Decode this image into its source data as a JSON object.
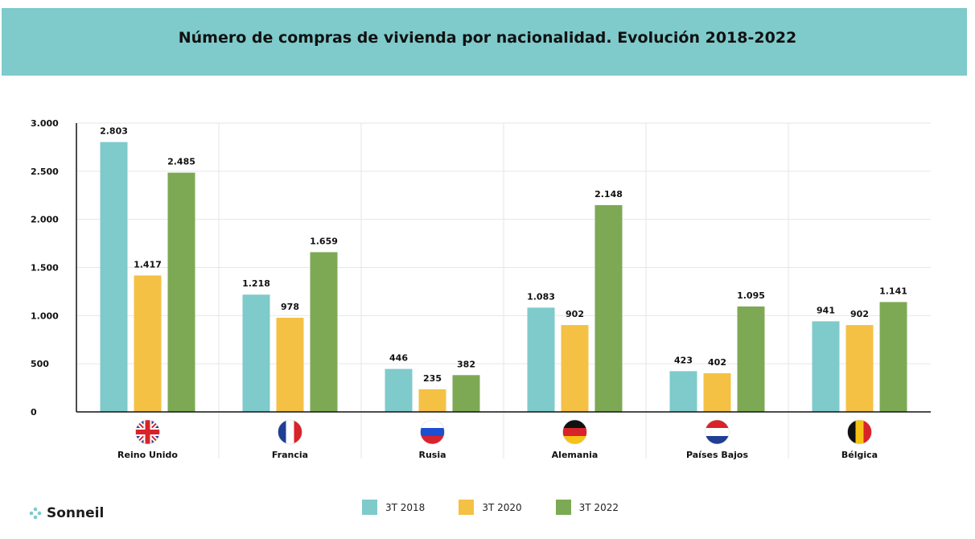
{
  "title": "Número de compras de vivienda por nacionalidad. Evolución 2018-2022",
  "brand": "Sonneil",
  "colors": {
    "banner": "#7fcacb",
    "s2018": "#7fcacb",
    "s2020": "#f4c145",
    "s2022": "#7da955"
  },
  "chart_data": {
    "type": "bar",
    "title": "Número de compras de vivienda por nacionalidad. Evolución 2018-2022",
    "xlabel": "",
    "ylabel": "",
    "ylim": [
      0,
      3000
    ],
    "yticks": [
      0,
      500,
      1000,
      1500,
      2000,
      2500,
      3000
    ],
    "ytick_labels": [
      "0",
      "500",
      "1.000",
      "1.500",
      "2.000",
      "2.500",
      "3.000"
    ],
    "grid": true,
    "legend_position": "bottom",
    "categories": [
      "Reino Unido",
      "Francia",
      "Rusia",
      "Alemania",
      "Países Bajos",
      "Bélgica"
    ],
    "flags": [
      "uk",
      "france",
      "russia",
      "germany",
      "netherlands",
      "belgium"
    ],
    "series": [
      {
        "name": "3T 2018",
        "color": "#7fcacb",
        "values": [
          2803,
          1218,
          446,
          1083,
          423,
          941
        ],
        "labels": [
          "2.803",
          "1.218",
          "446",
          "1.083",
          "423",
          "941"
        ]
      },
      {
        "name": "3T 2020",
        "color": "#f4c145",
        "values": [
          1417,
          978,
          235,
          902,
          402,
          902
        ],
        "labels": [
          "1.417",
          "978",
          "235",
          "902",
          "402",
          "902"
        ]
      },
      {
        "name": "3T 2022",
        "color": "#7da955",
        "values": [
          2485,
          1659,
          382,
          2148,
          1095,
          1141
        ],
        "labels": [
          "2.485",
          "1.659",
          "382",
          "2.148",
          "1.095",
          "1.141"
        ]
      }
    ]
  }
}
